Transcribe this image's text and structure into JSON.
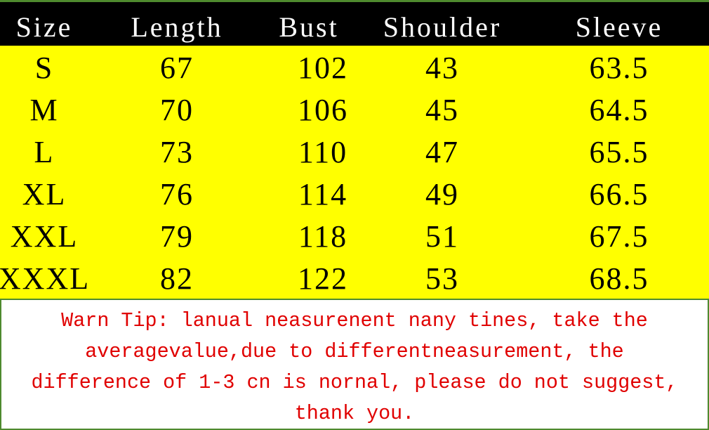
{
  "table": {
    "headers": [
      "Size",
      "Length",
      "Bust",
      "Shoulder",
      "Sleeve"
    ],
    "rows": [
      [
        "S",
        "67",
        "102",
        "43",
        "63.5"
      ],
      [
        "M",
        "70",
        "106",
        "45",
        "64.5"
      ],
      [
        "L",
        "73",
        "110",
        "47",
        "65.5"
      ],
      [
        "XL",
        "76",
        "114",
        "49",
        "66.5"
      ],
      [
        "XXL",
        "79",
        "118",
        "51",
        "67.5"
      ],
      [
        "XXXL",
        "82",
        "122",
        "53",
        "68.5"
      ]
    ]
  },
  "note": {
    "lines": [
      "Warn Tip: lanual neasurenent nany tines, take the",
      "averagevalue,due to differentneasurement, the",
      "difference of 1-3 cn is nornal, please do not suggest,",
      "thank you."
    ]
  },
  "colors": {
    "header_bg": "#000000",
    "body_bg": "#ffff00",
    "note_text": "#e00000",
    "border": "#4e8a2e"
  }
}
